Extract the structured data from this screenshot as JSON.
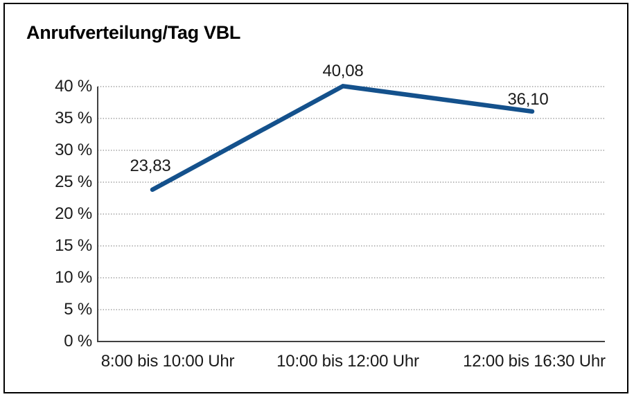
{
  "chart_data": {
    "type": "line",
    "title": "Anrufverteilung/Tag VBL",
    "categories": [
      "8:00 bis 10:00 Uhr",
      "10:00 bis 12:00 Uhr",
      "12:00 bis 16:30 Uhr"
    ],
    "values": [
      23.83,
      40.08,
      36.1
    ],
    "point_labels": [
      "23,83",
      "40,08",
      "36,10"
    ],
    "y_ticks": [
      "0 %",
      "5 %",
      "10 %",
      "15 %",
      "20 %",
      "25 %",
      "30 %",
      "35 %",
      "40 %"
    ],
    "ylim": [
      0,
      40
    ],
    "y_tick_step": 5,
    "xlabel": "",
    "ylabel": "",
    "grid": "horizontal-dotted",
    "legend": "none",
    "colors": {
      "line": "#14518C",
      "axis": "#404040",
      "gridline": "#6E6E6E",
      "text": "#1A1A1A",
      "frame_border": "#000000",
      "background": "#FFFFFF"
    }
  }
}
